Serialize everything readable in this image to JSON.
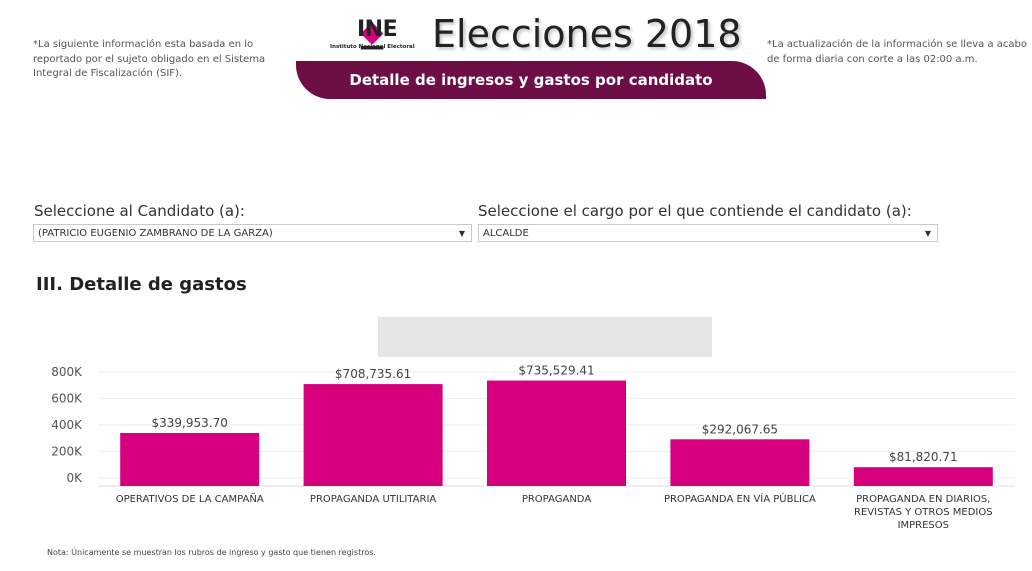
{
  "header": {
    "note_left": "*La siguiente información esta basada en lo reportado por el sujeto obligado en el Sistema Integral de Fiscalización (SIF).",
    "note_right": "*La actualización de la información se lleva a acabo de forma diaria con corte a las 02:00 a.m.",
    "logo_text": "INE",
    "logo_subtext": "Instituto Nacional Electoral",
    "title": "Elecciones 2018",
    "banner": "Detalle de ingresos y gastos por candidato"
  },
  "filters": {
    "candidate_label": "Seleccione al Candidato (a):",
    "candidate_value": "(PATRICIO EUGENIO ZAMBRANO DE LA GARZA)",
    "position_label": "Seleccione el cargo por el que contiende el candidato (a):",
    "position_value": "ALCALDE",
    "arrow": "▼"
  },
  "section_title": "III. Detalle de gastos",
  "footnote": "Nota: Únicamente se muestran los rubros de ingreso y gasto que tienen registros.",
  "colors": {
    "bar": "#d6007e",
    "banner": "#6d0e46",
    "logo": "#d6007e"
  },
  "chart_data": {
    "type": "bar",
    "title": "",
    "xlabel": "",
    "ylabel": "",
    "ylim": [
      0,
      900000
    ],
    "yticks": [
      0,
      200000,
      400000,
      600000,
      800000
    ],
    "ytick_labels": [
      "0K",
      "200K",
      "400K",
      "600K",
      "800K"
    ],
    "categories": [
      [
        "OPERATIVOS DE LA CAMPAÑA"
      ],
      [
        "PROPAGANDA UTILITARIA"
      ],
      [
        "PROPAGANDA"
      ],
      [
        "PROPAGANDA EN VÍA PÚBLICA"
      ],
      [
        "PROPAGANDA EN DIARIOS,",
        "REVISTAS Y OTROS MEDIOS",
        "IMPRESOS"
      ]
    ],
    "values": [
      339953.7,
      708735.61,
      735529.41,
      292067.65,
      81820.71
    ],
    "data_labels": [
      "$339,953.70",
      "$708,735.61",
      "$735,529.41",
      "$292,067.65",
      "$81,820.71"
    ]
  }
}
